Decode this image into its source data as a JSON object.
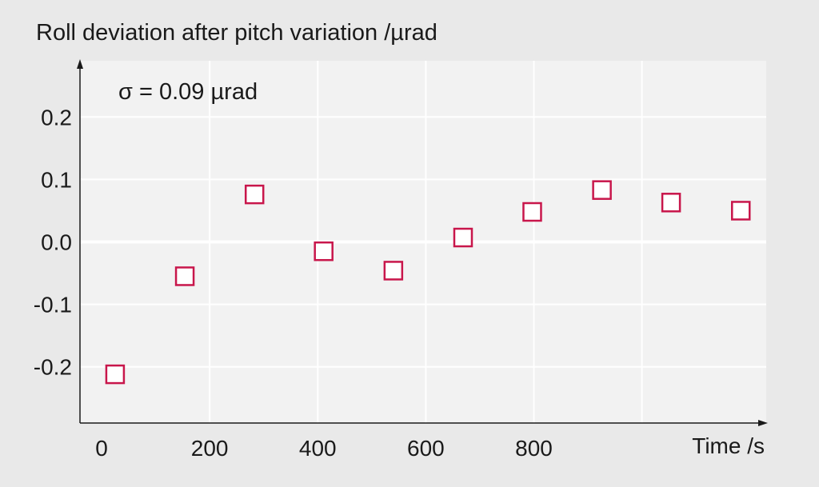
{
  "chart_data": {
    "type": "scatter",
    "title": "Roll deviation after pitch variation /µrad",
    "xlabel": "Time /s",
    "ylabel": "",
    "annotation": "σ = 0.09 µrad",
    "xlim": [
      -40,
      1230
    ],
    "ylim": [
      -0.29,
      0.29
    ],
    "x_ticks": [
      0,
      200,
      400,
      600,
      800
    ],
    "x_tick_labels": [
      "0",
      "200",
      "400",
      "600",
      "800"
    ],
    "x_grid": [
      200,
      400,
      600,
      800,
      1000
    ],
    "y_ticks": [
      0.2,
      0.1,
      0.0,
      -0.1,
      -0.2
    ],
    "y_tick_labels": [
      "0.2",
      "0.1",
      "0.0",
      "-0.1",
      "-0.2"
    ],
    "grid": true,
    "series": [
      {
        "x": [
          25,
          154,
          283,
          411,
          540,
          669,
          797,
          926,
          1054,
          1183
        ],
        "y": [
          -0.212,
          -0.055,
          0.076,
          -0.015,
          -0.046,
          0.007,
          0.048,
          0.083,
          0.063,
          0.05
        ]
      }
    ],
    "colors": {
      "marker": "#c8164b",
      "plot_bg": "#f2f2f2",
      "page_bg": "#e9e9e9",
      "grid": "#ffffff",
      "axis": "#1a1a1a"
    }
  }
}
